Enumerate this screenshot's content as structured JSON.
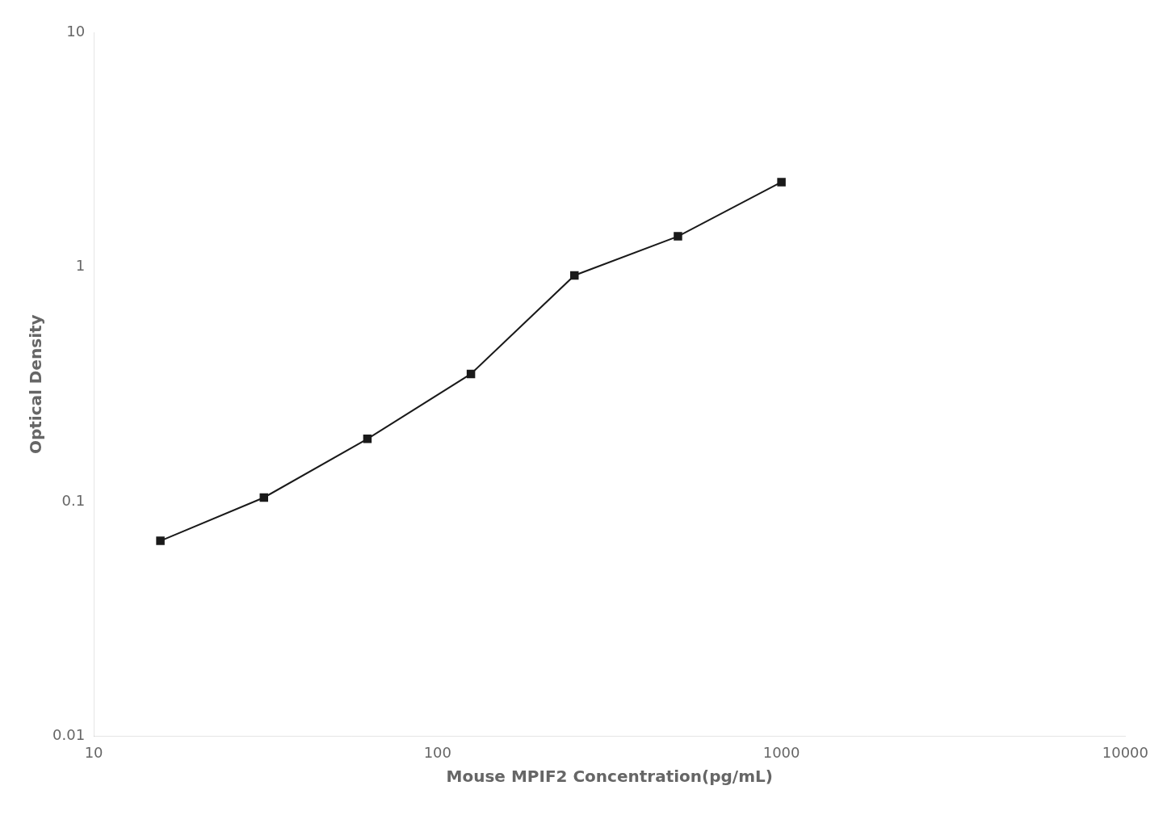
{
  "chart_data": {
    "type": "line",
    "x": [
      15.625,
      31.25,
      62.5,
      125,
      250,
      500,
      1000
    ],
    "values": [
      0.068,
      0.104,
      0.185,
      0.35,
      0.92,
      1.35,
      2.3
    ],
    "xlim": [
      10,
      10000
    ],
    "ylim": [
      0.01,
      10
    ],
    "xticks": [
      10,
      100,
      1000,
      10000
    ],
    "yticks": [
      0.01,
      0.1,
      1,
      10
    ],
    "log": true,
    "xlabel": "Mouse MPIF2 Concentration(pg/mL)",
    "ylabel": "Optical Density",
    "color": "#1a1a1a",
    "marker": "square",
    "grid": false
  }
}
